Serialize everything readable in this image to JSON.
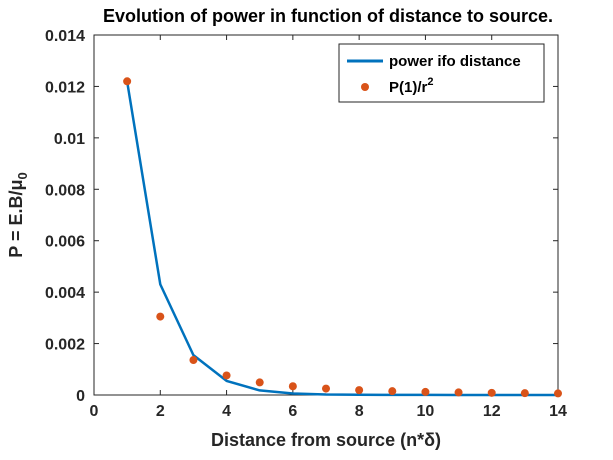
{
  "chart_data": {
    "type": "line",
    "title": "Evolution of power in function of distance to source.",
    "xlabel": "Distance from source (n*δ)",
    "ylabel": "P = E.B/μ",
    "ylabel_subscript": "0",
    "xlim": [
      0,
      14
    ],
    "ylim": [
      0,
      0.014
    ],
    "xticks": [
      0,
      2,
      4,
      6,
      8,
      10,
      12,
      14
    ],
    "yticks": [
      0,
      0.002,
      0.004,
      0.006,
      0.008,
      0.01,
      0.012,
      0.014
    ],
    "ytick_labels": [
      "0",
      "0.002",
      "0.004",
      "0.006",
      "0.008",
      "0.01",
      "0.012",
      "0.014"
    ],
    "grid": false,
    "legend_position": "top-right",
    "series": [
      {
        "name": "power ifo distance",
        "kind": "line",
        "color": "#0072BD",
        "x": [
          1,
          2,
          3,
          4,
          5,
          6,
          7,
          8,
          9,
          10,
          11,
          12,
          13,
          14
        ],
        "y": [
          0.0122,
          0.0043,
          0.00155,
          0.00055,
          0.00018,
          6e-05,
          2e-05,
          1e-05,
          5e-06,
          2e-06,
          1e-06,
          5e-07,
          2e-07,
          1e-07
        ]
      },
      {
        "name": "P(1)/r",
        "name_superscript": "2",
        "kind": "scatter",
        "color": "#D95319",
        "x": [
          1,
          2,
          3,
          4,
          5,
          6,
          7,
          8,
          9,
          10,
          11,
          12,
          13,
          14
        ],
        "y": [
          0.0122,
          0.00305,
          0.00136,
          0.00076,
          0.00049,
          0.00034,
          0.00025,
          0.00019,
          0.00015,
          0.00012,
          0.0001,
          8.5e-05,
          7.2e-05,
          6.2e-05
        ]
      }
    ]
  }
}
